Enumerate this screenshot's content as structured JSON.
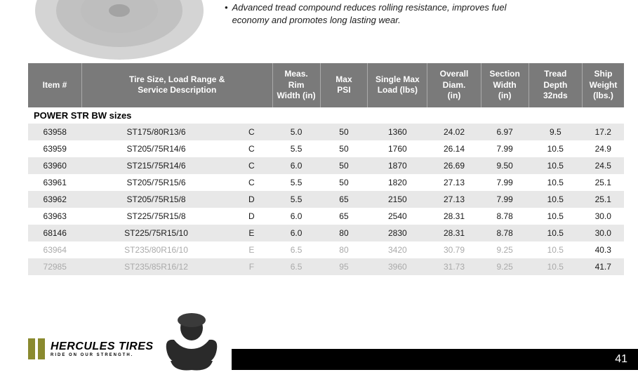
{
  "feature": {
    "line1": "Advanced tread compound reduces rolling resistance, improves fuel",
    "line2": "economy and promotes long lasting wear."
  },
  "headers": {
    "item": "Item #",
    "tire_size_l1": "Tire Size, Load Range &",
    "tire_size_l2": "Service Description",
    "load_range": "",
    "rim_l1": "Meas. Rim",
    "rim_l2": "Width (in)",
    "psi_l1": "Max",
    "psi_l2": "PSI",
    "load_l1": "Single Max",
    "load_l2": "Load (lbs)",
    "diam_l1": "Overall",
    "diam_l2": "Diam.",
    "diam_l3": "(in)",
    "width_l1": "Section",
    "width_l2": "Width",
    "width_l3": "(in)",
    "tread_l1": "Tread Depth",
    "tread_l2": "32nds",
    "ship_l1": "Ship",
    "ship_l2": "Weight",
    "ship_l3": "(lbs.)"
  },
  "section_label": "POWER STR BW sizes",
  "rows": [
    {
      "item": "63958",
      "size": "ST175/80R13/6",
      "lr": "C",
      "rim": "5.0",
      "psi": "50",
      "load": "1360",
      "diam": "24.02",
      "width": "6.97",
      "tread": "9.5",
      "ship": "17.2",
      "cls": "odd",
      "faded": false
    },
    {
      "item": "63959",
      "size": "ST205/75R14/6",
      "lr": "C",
      "rim": "5.5",
      "psi": "50",
      "load": "1760",
      "diam": "26.14",
      "width": "7.99",
      "tread": "10.5",
      "ship": "24.9",
      "cls": "even",
      "faded": false
    },
    {
      "item": "63960",
      "size": "ST215/75R14/6",
      "lr": "C",
      "rim": "6.0",
      "psi": "50",
      "load": "1870",
      "diam": "26.69",
      "width": "9.50",
      "tread": "10.5",
      "ship": "24.5",
      "cls": "odd",
      "faded": false
    },
    {
      "item": "63961",
      "size": "ST205/75R15/6",
      "lr": "C",
      "rim": "5.5",
      "psi": "50",
      "load": "1820",
      "diam": "27.13",
      "width": "7.99",
      "tread": "10.5",
      "ship": "25.1",
      "cls": "even",
      "faded": false
    },
    {
      "item": "63962",
      "size": "ST205/75R15/8",
      "lr": "D",
      "rim": "5.5",
      "psi": "65",
      "load": "2150",
      "diam": "27.13",
      "width": "7.99",
      "tread": "10.5",
      "ship": "25.1",
      "cls": "odd",
      "faded": false
    },
    {
      "item": "63963",
      "size": "ST225/75R15/8",
      "lr": "D",
      "rim": "6.0",
      "psi": "65",
      "load": "2540",
      "diam": "28.31",
      "width": "8.78",
      "tread": "10.5",
      "ship": "30.0",
      "cls": "even",
      "faded": false
    },
    {
      "item": "68146",
      "size": "ST225/75R15/10",
      "lr": "E",
      "rim": "6.0",
      "psi": "80",
      "load": "2830",
      "diam": "28.31",
      "width": "8.78",
      "tread": "10.5",
      "ship": "30.0",
      "cls": "odd",
      "faded": false
    },
    {
      "item": "63964",
      "size": "ST235/80R16/10",
      "lr": "E",
      "rim": "6.5",
      "psi": "80",
      "load": "3420",
      "diam": "30.79",
      "width": "9.25",
      "tread": "10.5",
      "ship": "40.3",
      "cls": "even",
      "faded": true
    },
    {
      "item": "72985",
      "size": "ST235/85R16/12",
      "lr": "F",
      "rim": "6.5",
      "psi": "95",
      "load": "3960",
      "diam": "31.73",
      "width": "9.25",
      "tread": "10.5",
      "ship": "41.7",
      "cls": "odd",
      "faded": true
    }
  ],
  "colors": {
    "header_bg": "#7a7a7a",
    "odd_row": "#e8e8e8",
    "even_row": "#ffffff",
    "text": "#1a1a1a",
    "faded": "#aaaaaa",
    "logo_bar": "#8a8a2f"
  },
  "footer": {
    "brand": "HERCULES TIRES",
    "tagline": "RIDE ON OUR STRENGTH.",
    "page_number": "41"
  },
  "col_widths": {
    "item": "9%",
    "size": "25%",
    "lr": "7%",
    "rim": "8%",
    "psi": "8%",
    "load": "10%",
    "diam": "9%",
    "width": "8%",
    "tread": "9%",
    "ship": "10%"
  }
}
